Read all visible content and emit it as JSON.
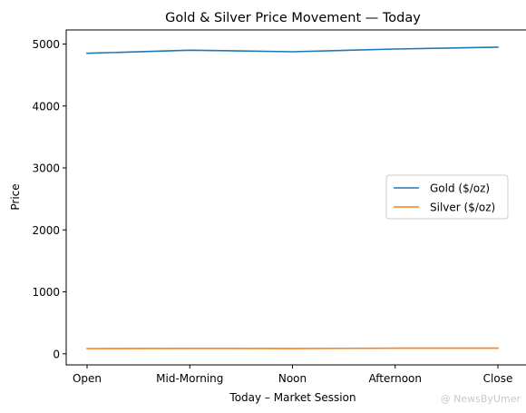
{
  "chart_data": {
    "type": "line",
    "title": "Gold & Silver Price Movement — Today",
    "xlabel": "Today – Market Session",
    "ylabel": "Price",
    "categories": [
      "Open",
      "Mid-Morning",
      "Noon",
      "Afternoon",
      "Close"
    ],
    "yticks": [
      0,
      1000,
      2000,
      3000,
      4000,
      5000
    ],
    "ylim": [
      -179,
      5227
    ],
    "grid": false,
    "legend_position": "center-right",
    "series": [
      {
        "name": "Gold ($/oz)",
        "color": "#1f77b4",
        "values": [
          4850,
          4900,
          4875,
          4920,
          4948
        ]
      },
      {
        "name": "Silver ($/oz)",
        "color": "#ff7f0e",
        "values": [
          85,
          88,
          86,
          90,
          91
        ]
      }
    ]
  },
  "watermark": "@ NewsByUmer"
}
